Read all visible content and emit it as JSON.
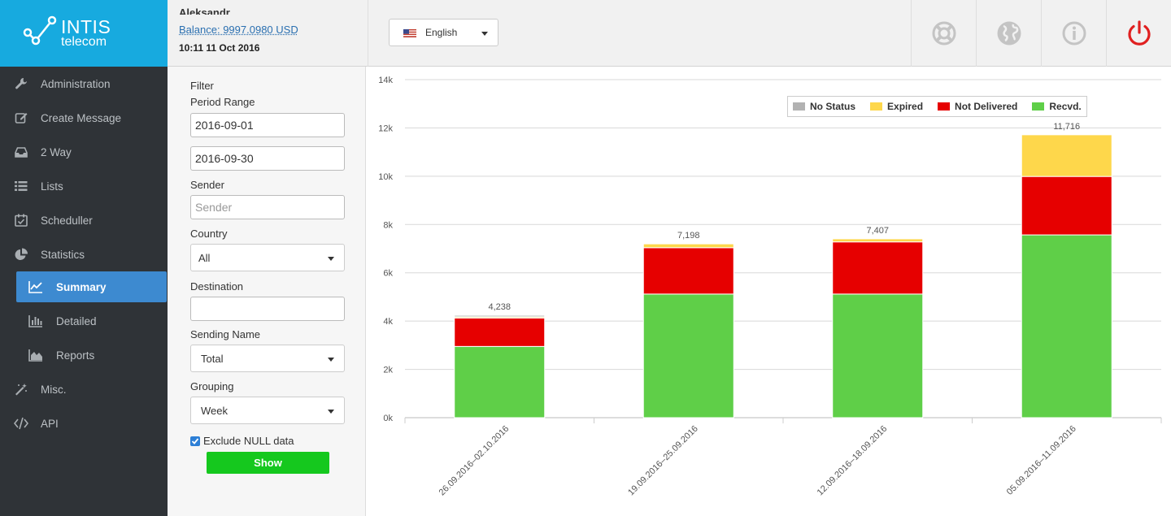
{
  "brand": {
    "name": "INTIS",
    "sub": "telecom"
  },
  "header": {
    "username": "Aleksandr",
    "balance": "Balance: 9997.0980 USD",
    "datetime": "10:11 11 Oct 2016",
    "language": "English",
    "icons": [
      "lifebuoy-icon",
      "globe-icon",
      "info-icon",
      "power-icon"
    ],
    "power_color": "#e02020"
  },
  "sidebar": {
    "items": [
      {
        "label": "Administration",
        "icon": "wrench-icon"
      },
      {
        "label": "Create Message",
        "icon": "edit-icon"
      },
      {
        "label": "2 Way",
        "icon": "inbox-icon"
      },
      {
        "label": "Lists",
        "icon": "list-icon"
      },
      {
        "label": "Scheduller",
        "icon": "calendar-check-icon"
      },
      {
        "label": "Statistics",
        "icon": "pie-chart-icon"
      },
      {
        "label": "Summary",
        "icon": "line-chart-icon",
        "active": true
      },
      {
        "label": "Detailed",
        "icon": "bar-chart-icon"
      },
      {
        "label": "Reports",
        "icon": "area-chart-icon"
      },
      {
        "label": "Misc.",
        "icon": "magic-wand-icon"
      },
      {
        "label": "API",
        "icon": "code-icon"
      }
    ]
  },
  "filter": {
    "title": "Filter",
    "period_label": "Period Range",
    "date_from": "2016-09-01",
    "date_to": "2016-09-30",
    "sender_label": "Sender",
    "sender_placeholder": "Sender",
    "country_label": "Country",
    "country_value": "All",
    "destination_label": "Destination",
    "destination_value": "",
    "sending_name_label": "Sending Name",
    "sending_name_value": "Total",
    "grouping_label": "Grouping",
    "grouping_value": "Week",
    "exclude_null_label": "Exclude NULL data",
    "exclude_null_checked": true,
    "show_label": "Show"
  },
  "chart_data": {
    "type": "bar",
    "stacked": true,
    "categories": [
      "26.09.2016–02.10.2016",
      "19.09.2016–25.09.2016",
      "12.09.2016–18.09.2016",
      "05.09.2016–11.09.2016"
    ],
    "series": [
      {
        "name": "Recvd.",
        "color": "#5fcf48",
        "values": [
          2950,
          5120,
          5120,
          7570
        ]
      },
      {
        "name": "Not Delivered",
        "color": "#e60000",
        "values": [
          1180,
          1920,
          2160,
          2420
        ]
      },
      {
        "name": "Expired",
        "color": "#fed74b",
        "values": [
          48,
          158,
          127,
          1726
        ]
      },
      {
        "name": "No Status",
        "color": "#b2b2b2",
        "values": [
          60,
          0,
          0,
          0
        ]
      }
    ],
    "totals": [
      "4,238",
      "7,198",
      "7,407",
      "11,716"
    ],
    "legend_order": [
      "No Status",
      "Expired",
      "Not Delivered",
      "Recvd."
    ],
    "y_ticks": [
      "0k",
      "2k",
      "4k",
      "6k",
      "8k",
      "10k",
      "12k",
      "14k"
    ],
    "ylim": [
      0,
      14000
    ],
    "grid": true,
    "legend_position": "top-right"
  }
}
